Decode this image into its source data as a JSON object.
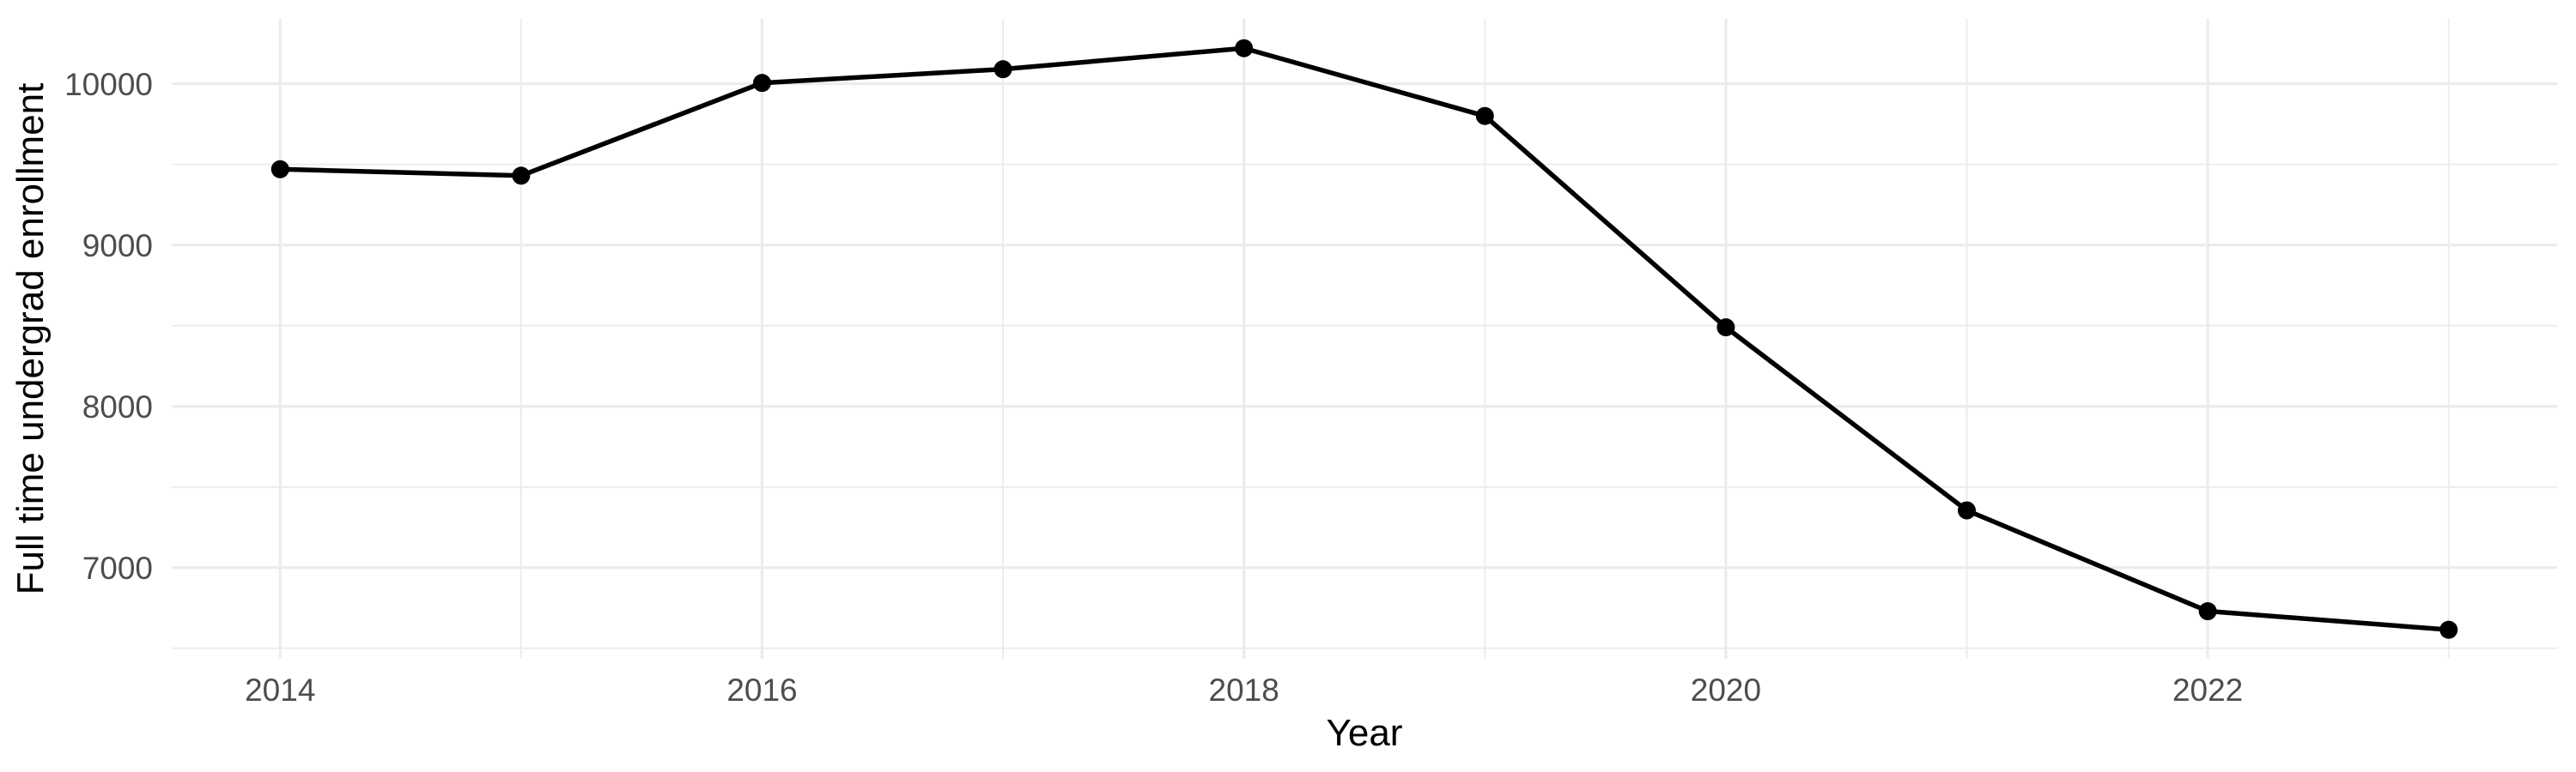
{
  "figure": {
    "x_axis_title": "Year",
    "y_axis_title": "Full time undergrad enrollment"
  },
  "chart_data": {
    "type": "line",
    "title": "",
    "xlabel": "Year",
    "ylabel": "Full time undergrad enrollment",
    "x": [
      2014,
      2015,
      2016,
      2017,
      2018,
      2019,
      2020,
      2021,
      2022,
      2023
    ],
    "series": [
      {
        "name": "Full time undergrad enrollment",
        "values": [
          9470,
          9430,
          10005,
          10090,
          10220,
          9800,
          8490,
          7355,
          6730,
          6615
        ]
      }
    ],
    "x_major_ticks": [
      2014,
      2016,
      2018,
      2020,
      2022
    ],
    "x_tick_labels": [
      "2014",
      "2016",
      "2018",
      "2020",
      "2022"
    ],
    "x_minor_gridlines": [
      2015,
      2017,
      2019,
      2021,
      2023
    ],
    "y_major_ticks": [
      7000,
      8000,
      9000,
      10000
    ],
    "y_tick_labels": [
      "7000",
      "8000",
      "9000",
      "10000"
    ],
    "y_minor_gridlines": [
      6500,
      7500,
      8500,
      9500
    ],
    "xlim": [
      2013.55,
      2023.45
    ],
    "ylim": [
      6435,
      10402
    ],
    "grid": true,
    "legend": "none",
    "colors": {
      "background": "#FFFFFF",
      "grid": "#EBEBEB",
      "line": "#000000",
      "point": "#000000",
      "tick_text": "#4D4D4D",
      "axis_title": "#000000"
    }
  }
}
